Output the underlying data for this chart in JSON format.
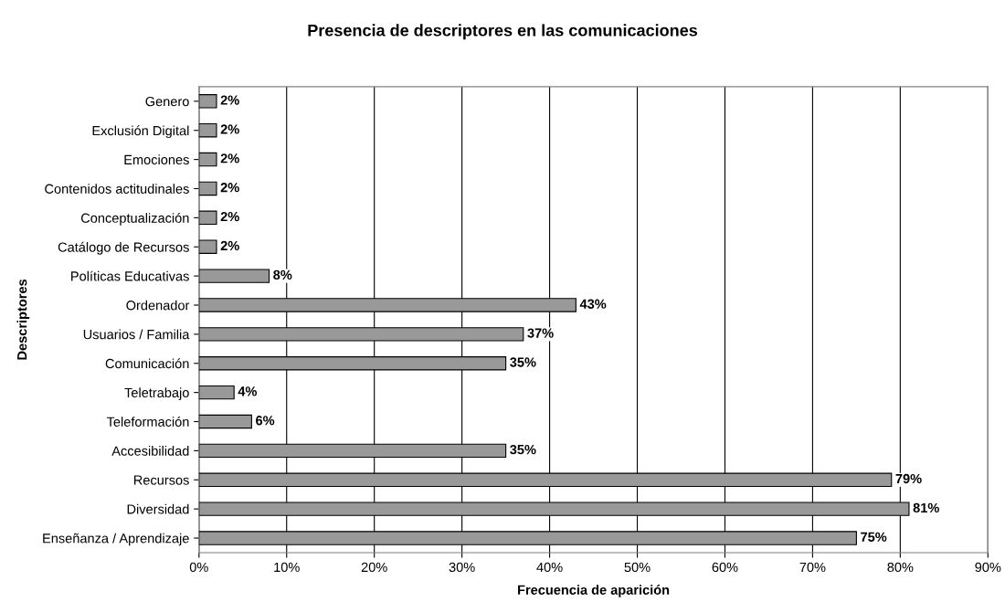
{
  "chart_data": {
    "type": "bar",
    "orientation": "horizontal",
    "title": "Presencia de descriptores en las comunicaciones",
    "xlabel": "Frecuencia de aparición",
    "ylabel": "Descriptores",
    "categories": [
      "Genero",
      "Exclusión Digital",
      "Emociones",
      "Contenidos actitudinales",
      "Conceptualización",
      "Catálogo de Recursos",
      "Políticas Educativas",
      "Ordenador",
      "Usuarios / Familia",
      "Comunicación",
      "Teletrabajo",
      "Teleformación",
      "Accesibilidad",
      "Recursos",
      "Diversidad",
      "Enseñanza / Aprendizaje"
    ],
    "values": [
      2,
      2,
      2,
      2,
      2,
      2,
      8,
      43,
      37,
      35,
      4,
      6,
      35,
      79,
      81,
      75
    ],
    "value_labels": [
      "2%",
      "2%",
      "2%",
      "2%",
      "2%",
      "2%",
      "8%",
      "43%",
      "37%",
      "35%",
      "4%",
      "6%",
      "35%",
      "79%",
      "81%",
      "75%"
    ],
    "color": "#999999",
    "xlim": [
      0,
      90
    ],
    "xticks": [
      {
        "value": 0,
        "label": "0%"
      },
      {
        "value": 10,
        "label": "10%"
      },
      {
        "value": 20,
        "label": "20%"
      },
      {
        "value": 30,
        "label": "30%"
      },
      {
        "value": 40,
        "label": "40%"
      },
      {
        "value": 50,
        "label": "50%"
      },
      {
        "value": 60,
        "label": "60%"
      },
      {
        "value": 70,
        "label": "70%"
      },
      {
        "value": 80,
        "label": "80%"
      },
      {
        "value": 90,
        "label": "90%"
      }
    ],
    "grid": "x",
    "legend": false
  }
}
